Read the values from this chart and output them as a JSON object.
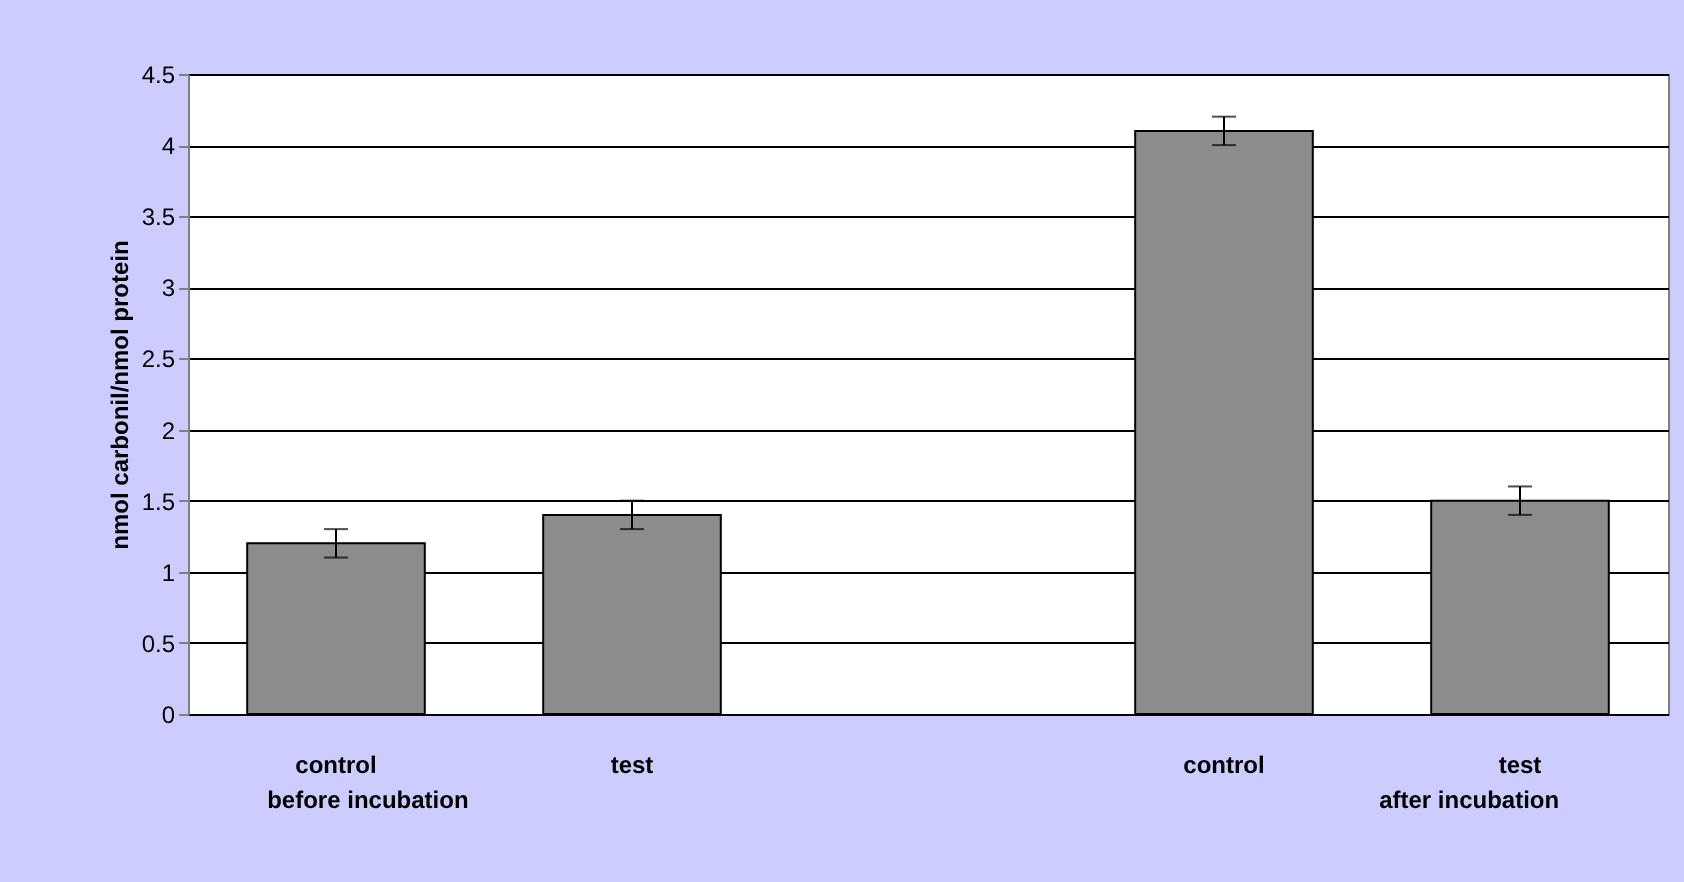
{
  "chart_data": {
    "type": "bar",
    "ylabel": "nmol carbonil/nmol protein",
    "categories": [
      "control",
      "test",
      null,
      "control",
      "test"
    ],
    "values": [
      1.2,
      1.4,
      null,
      4.1,
      1.5
    ],
    "errors": [
      0.1,
      0.1,
      null,
      0.1,
      0.1
    ],
    "color": "#8c8c8c",
    "ylim": [
      0,
      4.5
    ],
    "yticks": [
      0,
      0.5,
      1,
      1.5,
      2,
      2.5,
      3,
      3.5,
      4,
      4.5
    ],
    "grid": "y",
    "annotations": [
      "before incubation",
      "after incubation"
    ]
  }
}
